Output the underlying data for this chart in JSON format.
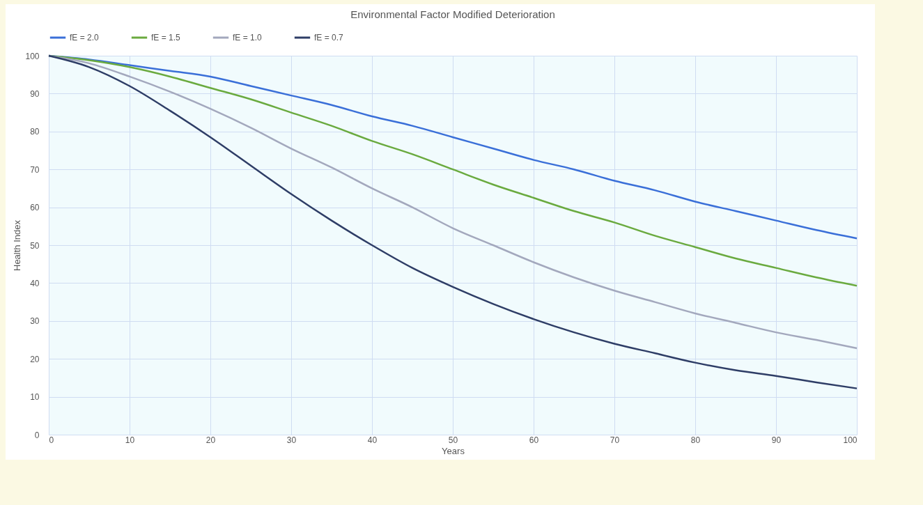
{
  "chart_data": {
    "type": "line",
    "title": "Environmental Factor Modified Deterioration",
    "xlabel": "Years",
    "ylabel": "Health Index",
    "x": [
      0,
      5,
      10,
      15,
      20,
      25,
      30,
      35,
      40,
      45,
      50,
      55,
      60,
      65,
      70,
      75,
      80,
      85,
      90,
      95,
      100
    ],
    "series": [
      {
        "name": "fE = 2.0",
        "color": "#3a6fd8",
        "values": [
          100,
          99,
          97.5,
          96,
          94.5,
          92,
          89.5,
          87,
          84,
          81.5,
          78.5,
          75.5,
          72.5,
          70,
          67,
          64.5,
          61.5,
          59,
          56.5,
          54,
          51.8
        ]
      },
      {
        "name": "fE = 1.5",
        "color": "#6aaa3f",
        "values": [
          100,
          98.8,
          97,
          94.5,
          91.5,
          88.5,
          85,
          81.5,
          77.5,
          74,
          70,
          66,
          62.5,
          59,
          56,
          52.5,
          49.5,
          46.5,
          44,
          41.5,
          39.3
        ]
      },
      {
        "name": "fE = 1.0",
        "color": "#a3a8bd",
        "values": [
          100,
          98,
          94.5,
          90.5,
          86,
          81,
          75.5,
          70.5,
          65,
          60,
          54.5,
          50,
          45.5,
          41.5,
          38,
          35,
          32,
          29.5,
          27,
          25,
          22.8
        ]
      },
      {
        "name": "fE = 0.7",
        "color": "#2e3d66",
        "values": [
          100,
          97,
          92,
          85.5,
          78.5,
          71,
          63.5,
          56.5,
          50,
          44,
          39,
          34.5,
          30.5,
          27,
          24,
          21.5,
          19,
          17,
          15.5,
          13.8,
          12.2
        ]
      }
    ],
    "xlim": [
      0,
      100
    ],
    "xticks": [
      0,
      10,
      20,
      30,
      40,
      50,
      60,
      70,
      80,
      90,
      100
    ],
    "ylim": [
      0,
      100
    ],
    "yticks": [
      0,
      10,
      20,
      30,
      40,
      50,
      60,
      70,
      80,
      90,
      100
    ],
    "grid": true,
    "legend": "top",
    "marker": "none",
    "line_style": "solid"
  }
}
